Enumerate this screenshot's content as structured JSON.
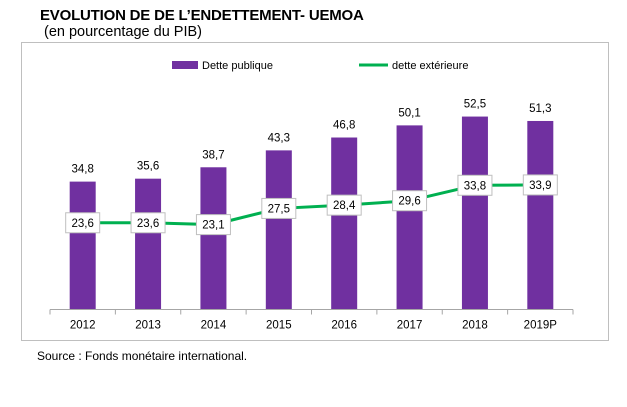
{
  "header": {
    "title": "EVOLUTION DE DE L’ENDETTEMENT- UEMOA",
    "subtitle": "(en pourcentage du PIB)"
  },
  "footer": {
    "source": "Source : Fonds monétaire international."
  },
  "chart_data": {
    "type": "bar",
    "categories": [
      "2012",
      "2013",
      "2014",
      "2015",
      "2016",
      "2017",
      "2018",
      "2019P"
    ],
    "series": [
      {
        "name": "Dette publique",
        "type": "bar",
        "color": "#7030a0",
        "values": [
          34.8,
          35.6,
          38.7,
          43.3,
          46.8,
          50.1,
          52.5,
          51.3
        ],
        "labels": [
          "34,8",
          "35,6",
          "38,7",
          "43,3",
          "46,8",
          "50,1",
          "52,5",
          "51,3"
        ]
      },
      {
        "name": "dette extérieure",
        "type": "line",
        "color": "#00b050",
        "values": [
          23.6,
          23.6,
          23.1,
          27.5,
          28.4,
          29.6,
          33.8,
          33.9
        ],
        "labels": [
          "23,6",
          "23,6",
          "23,1",
          "27,5",
          "28,4",
          "29,6",
          "33,8",
          "33,9"
        ]
      }
    ],
    "ylim": [
      0,
      60
    ],
    "grid": false,
    "legend_position": "top"
  }
}
